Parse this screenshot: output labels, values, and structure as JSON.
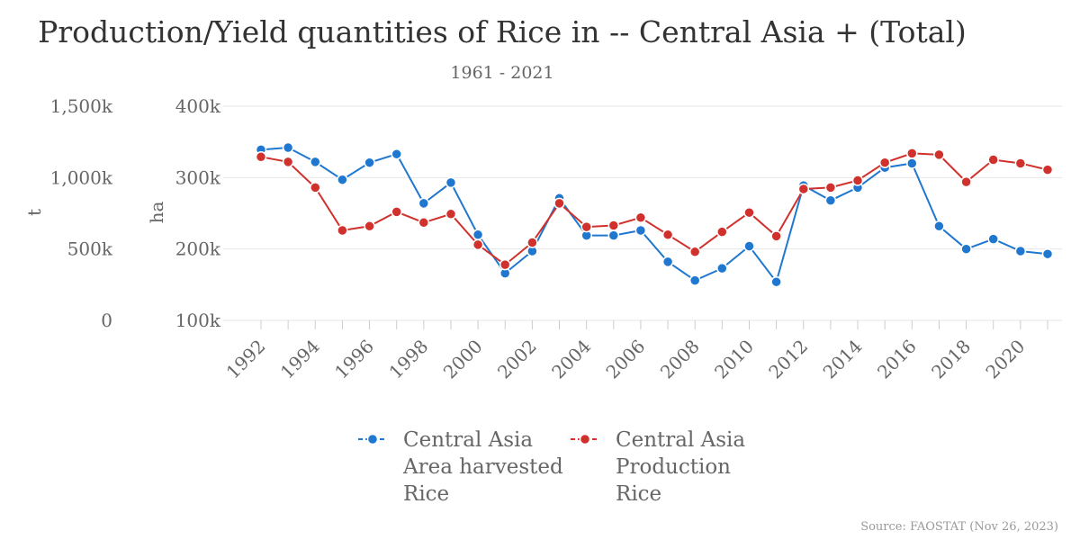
{
  "chart_data": {
    "type": "line",
    "title": "Production/Yield quantities of Rice in -- Central Asia + (Total)",
    "subtitle": "1961 - 2021",
    "source": "Source: FAOSTAT (Nov 26, 2023)",
    "x": [
      1992,
      1993,
      1994,
      1995,
      1996,
      1997,
      1998,
      1999,
      2000,
      2001,
      2002,
      2003,
      2004,
      2005,
      2006,
      2007,
      2008,
      2009,
      2010,
      2011,
      2012,
      2013,
      2014,
      2015,
      2016,
      2017,
      2018,
      2019,
      2020,
      2021
    ],
    "x_ticks": [
      1992,
      1994,
      1996,
      1998,
      2000,
      2002,
      2004,
      2006,
      2008,
      2010,
      2012,
      2014,
      2016,
      2018,
      2020
    ],
    "axes": {
      "left": {
        "label": "t",
        "ticks": [
          "0",
          "500k",
          "1,000k",
          "1,500k"
        ],
        "range": [
          0,
          1500000
        ]
      },
      "right": {
        "label": "ha",
        "ticks": [
          "100k",
          "200k",
          "300k",
          "400k"
        ],
        "range": [
          100000,
          400000
        ]
      }
    },
    "series": [
      {
        "name": "Central Asia Area harvested Rice",
        "legend_lines": [
          "Central Asia",
          "Area harvested",
          "Rice"
        ],
        "axis": "right",
        "color": "#1f77d0",
        "values": [
          339000,
          342000,
          322000,
          297000,
          321000,
          333000,
          264000,
          293000,
          220000,
          166000,
          197000,
          271000,
          219000,
          219000,
          226000,
          182000,
          156000,
          173000,
          204000,
          154000,
          289000,
          268000,
          286000,
          314000,
          320000,
          232000,
          200000,
          214000,
          197000,
          193000
        ]
      },
      {
        "name": "Central Asia Production Rice",
        "legend_lines": [
          "Central Asia",
          "Production",
          "Rice"
        ],
        "axis": "left",
        "color": "#d0312d",
        "values": [
          1145000,
          1110000,
          930000,
          630000,
          660000,
          760000,
          685000,
          745000,
          530000,
          390000,
          545000,
          820000,
          655000,
          665000,
          720000,
          600000,
          480000,
          620000,
          755000,
          590000,
          920000,
          930000,
          980000,
          1105000,
          1170000,
          1160000,
          970000,
          1125000,
          1100000,
          1055000
        ]
      }
    ],
    "legend_position": "bottom",
    "grid": true
  }
}
